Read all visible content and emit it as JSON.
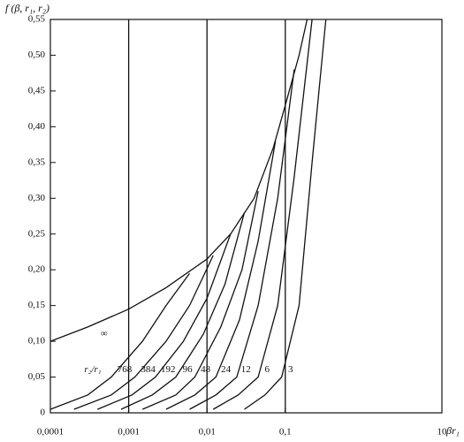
{
  "chart_data": {
    "type": "line",
    "y_axis_label": "f (β, r₁, r₂)",
    "x_axis_label": "βr₁",
    "annotation": "r₂/r₁",
    "x_scale": "log",
    "xlim": [
      0.0001,
      10
    ],
    "xticks": [
      {
        "value": 0.0001,
        "label": "0,0001"
      },
      {
        "value": 0.001,
        "label": "0,001"
      },
      {
        "value": 0.01,
        "label": "0,01"
      },
      {
        "value": 0.1,
        "label": "0,1"
      },
      10
    ],
    "ylim": [
      0,
      0.55
    ],
    "yticks": [
      0,
      {
        "value": 0.05,
        "label": "0,05"
      },
      {
        "value": 0.1,
        "label": "0,10"
      },
      {
        "value": 0.15,
        "label": "0,15"
      },
      {
        "value": 0.2,
        "label": "0,20"
      },
      {
        "value": 0.25,
        "label": "0,25"
      },
      {
        "value": 0.3,
        "label": "0,30"
      },
      {
        "value": 0.35,
        "label": "0,35"
      },
      {
        "value": 0.4,
        "label": "0,40"
      },
      {
        "value": 0.45,
        "label": "0,45"
      },
      {
        "value": 0.5,
        "label": "0,50"
      },
      {
        "value": 0.55,
        "label": "0,55"
      }
    ],
    "grid_x": [
      0.001,
      0.01,
      0.1
    ],
    "color": "#111111",
    "series": [
      {
        "name": "∞",
        "x": [
          0.0001,
          0.0003,
          0.001,
          0.003,
          0.01,
          0.02,
          0.04,
          0.07,
          0.1,
          0.15,
          0.19
        ],
        "values": [
          0.1,
          0.12,
          0.145,
          0.175,
          0.215,
          0.25,
          0.3,
          0.37,
          0.43,
          0.5,
          0.55
        ]
      },
      {
        "name": "768",
        "x": [
          0.0001,
          0.0003,
          0.0006,
          0.0015,
          0.003,
          0.006
        ],
        "values": [
          0.005,
          0.025,
          0.05,
          0.1,
          0.15,
          0.195
        ]
      },
      {
        "name": "384",
        "x": [
          0.0002,
          0.0006,
          0.0012,
          0.003,
          0.006,
          0.012
        ],
        "values": [
          0.005,
          0.025,
          0.05,
          0.1,
          0.15,
          0.22
        ]
      },
      {
        "name": "192",
        "x": [
          0.0004,
          0.0011,
          0.0022,
          0.005,
          0.01,
          0.02
        ],
        "values": [
          0.005,
          0.025,
          0.05,
          0.1,
          0.16,
          0.25
        ]
      },
      {
        "name": "96",
        "x": [
          0.0008,
          0.002,
          0.004,
          0.009,
          0.017,
          0.03
        ],
        "values": [
          0.005,
          0.025,
          0.05,
          0.11,
          0.18,
          0.28
        ]
      },
      {
        "name": "48",
        "x": [
          0.0015,
          0.004,
          0.007,
          0.015,
          0.028,
          0.045
        ],
        "values": [
          0.005,
          0.025,
          0.05,
          0.12,
          0.2,
          0.31
        ]
      },
      {
        "name": "24",
        "x": [
          0.003,
          0.007,
          0.013,
          0.026,
          0.045,
          0.075
        ],
        "values": [
          0.005,
          0.025,
          0.05,
          0.13,
          0.24,
          0.38
        ]
      },
      {
        "name": "12",
        "x": [
          0.006,
          0.013,
          0.024,
          0.045,
          0.08,
          0.13
        ],
        "values": [
          0.005,
          0.025,
          0.05,
          0.15,
          0.3,
          0.48
        ]
      },
      {
        "name": "6",
        "x": [
          0.012,
          0.025,
          0.045,
          0.08,
          0.13,
          0.22
        ],
        "values": [
          0.005,
          0.025,
          0.05,
          0.15,
          0.33,
          0.55
        ]
      },
      {
        "name": "3",
        "x": [
          0.03,
          0.055,
          0.09,
          0.15,
          0.22,
          0.33
        ],
        "values": [
          0.005,
          0.025,
          0.05,
          0.15,
          0.35,
          0.55
        ]
      }
    ]
  }
}
